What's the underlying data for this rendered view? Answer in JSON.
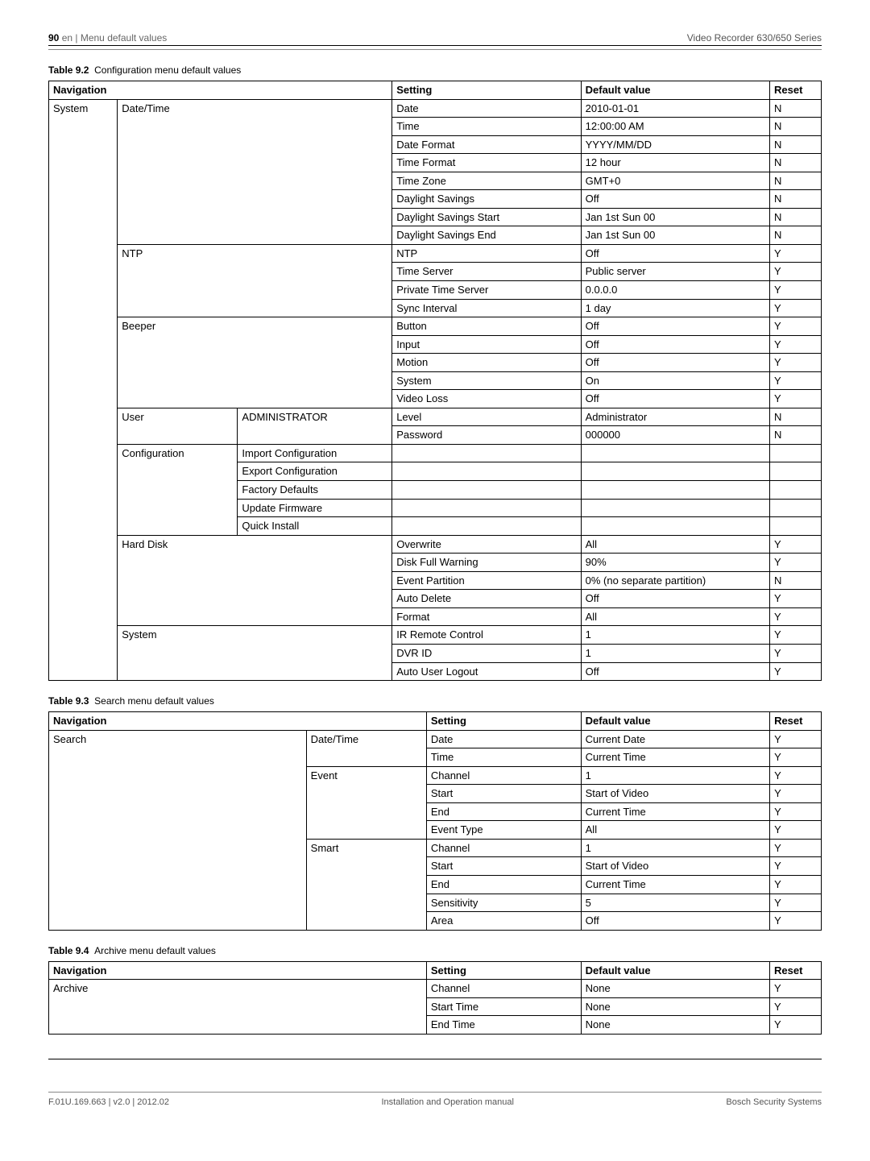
{
  "header": {
    "page_number": "90",
    "lang_section": "en | Menu default values",
    "product": "Video Recorder 630/650 Series"
  },
  "footer": {
    "doc_id": "F.01U.169.663 | v2.0 | 2012.02",
    "manual": "Installation and Operation manual",
    "company": "Bosch Security Systems"
  },
  "table92": {
    "caption_num": "Table 9.2",
    "caption_text": "Configuration menu default values",
    "headers": {
      "nav": "Navigation",
      "setting": "Setting",
      "default": "Default value",
      "reset": "Reset"
    },
    "nav_root": "System",
    "groups": [
      {
        "nav2": "Date/Time",
        "rows": [
          {
            "setting": "Date",
            "default": "2010-01-01",
            "reset": "N"
          },
          {
            "setting": "Time",
            "default": "12:00:00 AM",
            "reset": "N"
          },
          {
            "setting": "Date Format",
            "default": "YYYY/MM/DD",
            "reset": "N"
          },
          {
            "setting": "Time Format",
            "default": "12 hour",
            "reset": "N"
          },
          {
            "setting": "Time Zone",
            "default": "GMT+0",
            "reset": "N"
          },
          {
            "setting": "Daylight Savings",
            "default": "Off",
            "reset": "N"
          },
          {
            "setting": "Daylight Savings Start",
            "default": "Jan 1st Sun 00",
            "reset": "N"
          },
          {
            "setting": "Daylight Savings End",
            "default": "Jan 1st Sun 00",
            "reset": "N"
          }
        ]
      },
      {
        "nav2": "NTP",
        "rows": [
          {
            "setting": "NTP",
            "default": "Off",
            "reset": "Y"
          },
          {
            "setting": "Time Server",
            "default": "Public server",
            "reset": "Y"
          },
          {
            "setting": "Private Time Server",
            "default": "0.0.0.0",
            "reset": "Y"
          },
          {
            "setting": "Sync Interval",
            "default": "1 day",
            "reset": "Y"
          }
        ]
      },
      {
        "nav2": "Beeper",
        "rows": [
          {
            "setting": "Button",
            "default": "Off",
            "reset": "Y"
          },
          {
            "setting": "Input",
            "default": "Off",
            "reset": "Y"
          },
          {
            "setting": "Motion",
            "default": "Off",
            "reset": "Y"
          },
          {
            "setting": "System",
            "default": "On",
            "reset": "Y"
          },
          {
            "setting": "Video Loss",
            "default": "Off",
            "reset": "Y"
          }
        ]
      },
      {
        "nav2": "User",
        "nav3": "ADMINISTRATOR",
        "rows": [
          {
            "setting": "Level",
            "default": "Administrator",
            "reset": "N"
          },
          {
            "setting": "Password",
            "default": "000000",
            "reset": "N"
          }
        ]
      },
      {
        "nav2": "Configuration",
        "config_items": [
          "Import Configuration",
          "Export Configuration",
          "Factory Defaults",
          "Update Firmware",
          "Quick Install"
        ]
      },
      {
        "nav2": "Hard Disk",
        "rows": [
          {
            "setting": "Overwrite",
            "default": "All",
            "reset": "Y"
          },
          {
            "setting": "Disk Full Warning",
            "default": "90%",
            "reset": "Y"
          },
          {
            "setting": "Event Partition",
            "default": "0% (no separate partition)",
            "reset": "N"
          },
          {
            "setting": "Auto Delete",
            "default": "Off",
            "reset": "Y"
          },
          {
            "setting": "Format",
            "default": "All",
            "reset": "Y"
          }
        ]
      },
      {
        "nav2": "System",
        "rows": [
          {
            "setting": "IR Remote Control",
            "default": "1",
            "reset": "Y"
          },
          {
            "setting": "DVR ID",
            "default": "1",
            "reset": "Y"
          },
          {
            "setting": "Auto User Logout",
            "default": "Off",
            "reset": "Y"
          }
        ]
      }
    ]
  },
  "table93": {
    "caption_num": "Table 9.3",
    "caption_text": "Search menu default values",
    "headers": {
      "nav": "Navigation",
      "setting": "Setting",
      "default": "Default value",
      "reset": "Reset"
    },
    "nav_root": "Search",
    "groups": [
      {
        "nav2": "Date/Time",
        "rows": [
          {
            "setting": "Date",
            "default": "Current Date",
            "reset": "Y"
          },
          {
            "setting": "Time",
            "default": "Current Time",
            "reset": "Y"
          }
        ]
      },
      {
        "nav2": "Event",
        "rows": [
          {
            "setting": "Channel",
            "default": "1",
            "reset": "Y"
          },
          {
            "setting": "Start",
            "default": "Start of Video",
            "reset": "Y"
          },
          {
            "setting": "End",
            "default": "Current Time",
            "reset": "Y"
          },
          {
            "setting": "Event Type",
            "default": "All",
            "reset": "Y"
          }
        ]
      },
      {
        "nav2": "Smart",
        "rows": [
          {
            "setting": "Channel",
            "default": "1",
            "reset": "Y"
          },
          {
            "setting": "Start",
            "default": "Start of Video",
            "reset": "Y"
          },
          {
            "setting": "End",
            "default": "Current Time",
            "reset": "Y"
          },
          {
            "setting": "Sensitivity",
            "default": "5",
            "reset": "Y"
          },
          {
            "setting": "Area",
            "default": "Off",
            "reset": "Y"
          }
        ]
      }
    ]
  },
  "table94": {
    "caption_num": "Table 9.4",
    "caption_text": "Archive menu default values",
    "headers": {
      "nav": "Navigation",
      "setting": "Setting",
      "default": "Default value",
      "reset": "Reset"
    },
    "nav_root": "Archive",
    "rows": [
      {
        "setting": "Channel",
        "default": "None",
        "reset": "Y"
      },
      {
        "setting": "Start Time",
        "default": "None",
        "reset": "Y"
      },
      {
        "setting": "End Time",
        "default": "None",
        "reset": "Y"
      }
    ]
  },
  "col_widths": {
    "t92": {
      "nav1": "8%",
      "nav2": "14%",
      "nav3": "18%",
      "setting": "22%",
      "default": "22%",
      "reset": "6%"
    },
    "t93": {
      "nav1": "30%",
      "nav2": "14%",
      "setting": "18%",
      "default": "22%",
      "reset": "6%"
    },
    "t94": {
      "nav": "44%",
      "setting": "18%",
      "default": "22%",
      "reset": "6%"
    }
  }
}
